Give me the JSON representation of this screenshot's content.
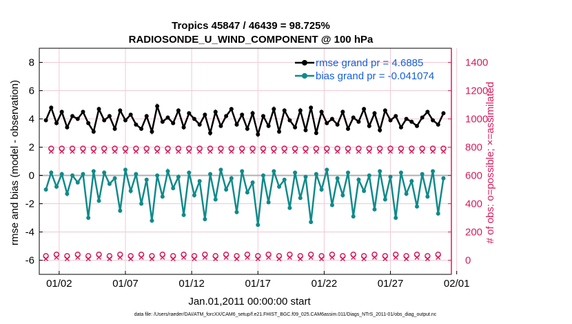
{
  "colors": {
    "rmse": "#000000",
    "bias": "#108a8a",
    "obs": "#d81b5a",
    "zero_line": "#b0b0b0",
    "grid": "#f0c8d4",
    "legend_text": "#1560e0"
  },
  "chart_data": {
    "type": "line",
    "title": "Tropics 45847 / 46439 = 98.725%",
    "subtitle": "RADIOSONDE_U_WIND_COMPONENT @ 100 hPa",
    "xlabel": "Jan.01,2011 00:00:00 start",
    "ylabel": "rmse and bias (model - observation)",
    "y2label": "# of obs: o=possible; ×=assimilated",
    "footnote": "data file: /Users/raeder/DAI/ATM_forcXX/CAM6_setup/f.e21.FHIST_BGC.f09_025.CAM6assim.011/Diags_NTrS_2011-01/obs_diag_output.nc",
    "xlim": [
      0.5,
      31.6
    ],
    "ylim": [
      -7,
      9
    ],
    "y2lim": [
      -100,
      1500
    ],
    "xticks": [
      {
        "value": 2,
        "label": "01/02"
      },
      {
        "value": 7,
        "label": "01/07"
      },
      {
        "value": 12,
        "label": "01/12"
      },
      {
        "value": 17,
        "label": "01/17"
      },
      {
        "value": 22,
        "label": "01/22"
      },
      {
        "value": 27,
        "label": "01/27"
      },
      {
        "value": 32,
        "label": "02/01"
      }
    ],
    "yticks": [
      -6,
      -4,
      -2,
      0,
      2,
      4,
      6,
      8
    ],
    "y2ticks": [
      0,
      200,
      400,
      600,
      800,
      1000,
      1200,
      1400
    ],
    "legend": [
      {
        "name": "rmse grand pr = 4.6885"
      },
      {
        "name": "bias grand pr = -0.041074"
      }
    ],
    "series": [
      {
        "name": "rmse",
        "values": [
          3.9,
          4.8,
          3.7,
          4.5,
          3.4,
          4.2,
          4.0,
          4.5,
          3.7,
          3.1,
          4.7,
          3.9,
          4.2,
          3.3,
          4.6,
          3.9,
          4.3,
          3.6,
          3.3,
          4.2,
          3.1,
          4.9,
          3.8,
          4.1,
          3.7,
          4.6,
          3.4,
          4.4,
          4.0,
          3.6,
          4.3,
          3.0,
          4.5,
          3.5,
          4.2,
          4.7,
          3.6,
          4.3,
          3.3,
          4.4,
          2.9,
          4.2,
          3.5,
          4.7,
          3.1,
          4.6,
          3.9,
          3.4,
          4.6,
          3.2,
          4.8,
          3.0,
          4.5,
          3.7,
          4.0,
          3.6,
          4.5,
          3.3,
          4.1,
          3.8,
          4.7,
          3.5,
          4.4,
          3.2,
          4.6,
          3.9,
          4.2,
          3.4,
          4.0,
          3.8,
          3.5,
          4.1,
          4.5,
          3.9,
          3.6,
          4.4
        ]
      },
      {
        "name": "bias",
        "values": [
          -1.0,
          0.2,
          -0.8,
          0.1,
          -1.3,
          0.0,
          -0.5,
          0.1,
          -3.0,
          0.3,
          -1.8,
          0.2,
          -0.6,
          -0.2,
          -2.5,
          0.4,
          -1.1,
          0.1,
          -2.0,
          -0.3,
          -3.2,
          0.0,
          -1.5,
          0.3,
          -0.9,
          -0.1,
          -2.8,
          0.2,
          -1.4,
          -0.4,
          -3.1,
          0.1,
          -1.7,
          0.4,
          -1.0,
          -0.2,
          -2.6,
          0.3,
          -1.2,
          -0.5,
          -3.5,
          0.0,
          -1.9,
          0.3,
          -0.8,
          -0.3,
          -2.3,
          0.2,
          -1.6,
          -0.1,
          -3.3,
          0.1,
          -1.0,
          0.4,
          -2.1,
          -0.2,
          -1.4,
          0.2,
          -2.9,
          -0.3,
          -1.1,
          0.0,
          -2.4,
          0.3,
          -1.7,
          -0.1,
          -3.0,
          0.2,
          -1.3,
          -0.4,
          -2.2,
          0.1,
          -1.5,
          0.3,
          -2.7,
          -0.2
        ]
      },
      {
        "name": "obs_possible",
        "values": [
          30,
          790,
          40,
          790,
          30,
          790,
          40,
          790,
          30,
          790,
          40,
          790,
          30,
          790,
          40,
          790,
          30,
          790,
          40,
          790,
          30,
          790,
          40,
          790,
          30,
          790,
          40,
          790,
          30,
          790,
          40,
          790,
          30,
          790,
          40,
          790,
          30,
          790,
          40,
          790,
          30,
          790,
          40,
          790,
          30,
          790,
          40,
          790,
          30,
          790,
          40,
          790,
          30,
          790,
          40,
          790,
          30,
          790,
          40,
          790,
          30,
          790,
          40,
          790,
          30,
          790,
          40,
          790,
          30,
          790,
          40,
          790,
          30,
          790,
          40,
          790
        ]
      },
      {
        "name": "obs_assimilated",
        "values": [
          10,
          770,
          20,
          770,
          10,
          770,
          20,
          770,
          10,
          770,
          20,
          770,
          10,
          770,
          20,
          770,
          10,
          770,
          20,
          770,
          10,
          770,
          20,
          770,
          10,
          770,
          20,
          770,
          10,
          770,
          20,
          770,
          10,
          770,
          20,
          770,
          10,
          770,
          20,
          770,
          10,
          770,
          20,
          770,
          10,
          770,
          20,
          770,
          10,
          770,
          20,
          770,
          10,
          770,
          20,
          770,
          10,
          770,
          20,
          770,
          10,
          770,
          20,
          770,
          10,
          770,
          20,
          770,
          10,
          770,
          20,
          770,
          10,
          770,
          20,
          770
        ]
      }
    ]
  }
}
